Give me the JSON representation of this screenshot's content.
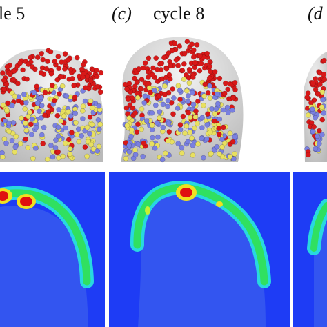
{
  "panels": [
    {
      "label": "le 5"
    },
    {
      "letter": "(c)",
      "label": "cycle 8"
    },
    {
      "letter": "(d"
    }
  ]
}
